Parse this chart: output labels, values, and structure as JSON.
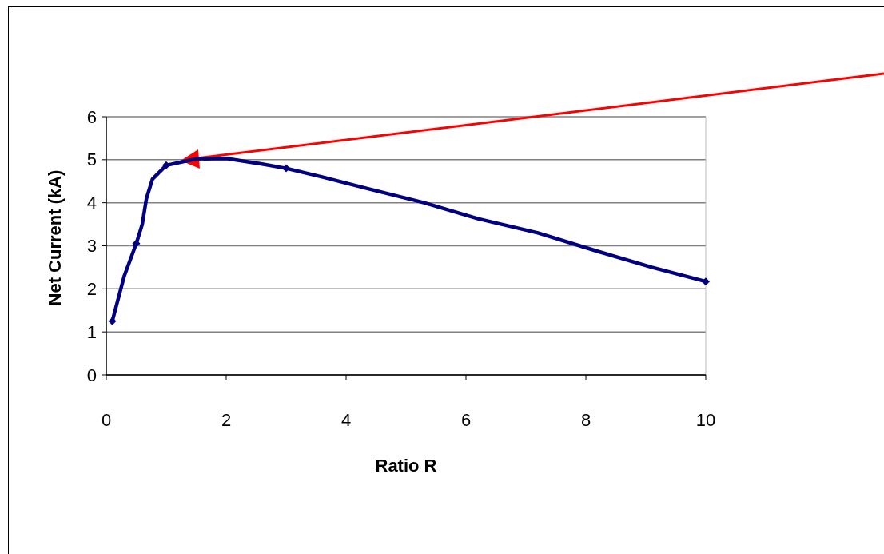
{
  "chart_data": {
    "type": "line",
    "xlabel": "Ratio R",
    "ylabel": "Net Current (kA)",
    "xlim": [
      0,
      10
    ],
    "ylim": [
      0,
      6
    ],
    "xticks": [
      0,
      2,
      4,
      6,
      8,
      10
    ],
    "yticks": [
      0,
      1,
      2,
      3,
      4,
      5,
      6
    ],
    "grid": "y",
    "series": [
      {
        "color": "#000080",
        "marker": "none",
        "x": [
          0.1,
          0.3,
          0.5,
          0.6,
          0.67,
          0.77,
          1.0,
          1.5,
          2,
          2.6,
          3,
          3.6,
          4.3,
          5.3,
          6.2,
          7.2,
          8.2,
          9.1,
          10
        ],
        "values": [
          1.25,
          2.3,
          3.05,
          3.5,
          4.1,
          4.55,
          4.87,
          5.02,
          5.03,
          4.9,
          4.8,
          4.6,
          4.35,
          4.0,
          3.63,
          3.3,
          2.87,
          2.5,
          2.17
        ]
      },
      {
        "type": "scatter",
        "color": "#000080",
        "marker": "diamond",
        "x": [
          0.1,
          0.5,
          1,
          3,
          10
        ],
        "values": [
          1.25,
          3.05,
          4.87,
          4.8,
          2.17
        ]
      }
    ]
  }
}
